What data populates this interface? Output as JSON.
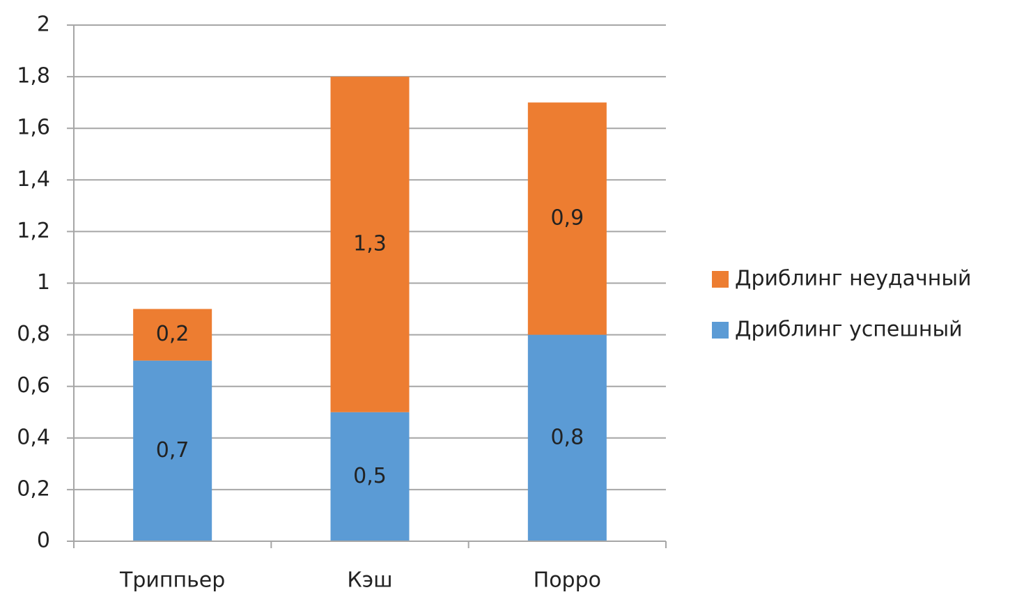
{
  "chart_data": {
    "type": "stacked_bar",
    "categories": [
      "Триппьер",
      "Кэш",
      "Порро"
    ],
    "series": [
      {
        "name": "Дриблинг успешный",
        "color": "#5b9bd5",
        "values": [
          0.7,
          0.5,
          0.8
        ],
        "value_labels": [
          "0,7",
          "0,5",
          "0,8"
        ]
      },
      {
        "name": "Дриблинг неудачный",
        "color": "#ed7d31",
        "values": [
          0.2,
          1.3,
          0.9
        ],
        "value_labels": [
          "0,2",
          "1,3",
          "0,9"
        ]
      }
    ],
    "ylim": [
      0,
      2
    ],
    "yticks": [
      0,
      {
        "value": 0.2,
        "label": "0,2"
      },
      {
        "value": 0.4,
        "label": "0,4"
      },
      {
        "value": 0.6,
        "label": "0,6"
      },
      {
        "value": 0.8,
        "label": "0,8"
      },
      1,
      {
        "value": 1.2,
        "label": "1,2"
      },
      {
        "value": 1.4,
        "label": "1,4"
      },
      {
        "value": 1.6,
        "label": "1,6"
      },
      {
        "value": 1.8,
        "label": "1,8"
      },
      2
    ],
    "grid": true,
    "legend": "right"
  }
}
